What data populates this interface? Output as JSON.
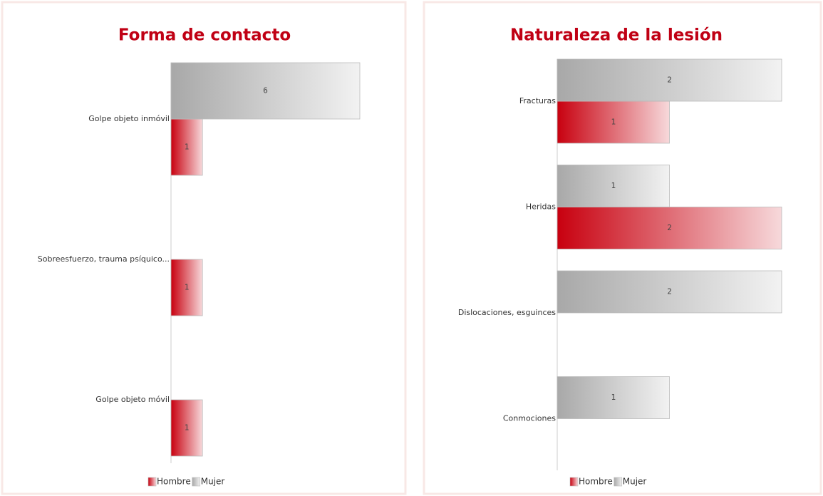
{
  "chart_data": [
    {
      "type": "bar",
      "title": "Forma de contacto",
      "categories": [
        "Golpe objeto inmóvil",
        "Sobreesfuerzo, trauma psíquico...",
        "Golpe objeto móvil"
      ],
      "series": [
        {
          "name": "Hombre",
          "color": "#c8000f",
          "values": [
            1,
            1,
            1
          ]
        },
        {
          "name": "Mujer",
          "color": "#a8a8a8",
          "values": [
            6,
            null,
            null
          ]
        }
      ],
      "xlim": [
        0,
        6
      ]
    },
    {
      "type": "bar",
      "title": "Naturaleza de la lesión",
      "categories": [
        "Fracturas",
        "Heridas",
        "Dislocaciones, esguinces",
        "Conmociones"
      ],
      "series": [
        {
          "name": "Hombre",
          "color": "#c8000f",
          "values": [
            1,
            2,
            null,
            null
          ]
        },
        {
          "name": "Mujer",
          "color": "#a8a8a8",
          "values": [
            2,
            1,
            2,
            1
          ]
        }
      ],
      "xlim": [
        0,
        2
      ]
    }
  ]
}
